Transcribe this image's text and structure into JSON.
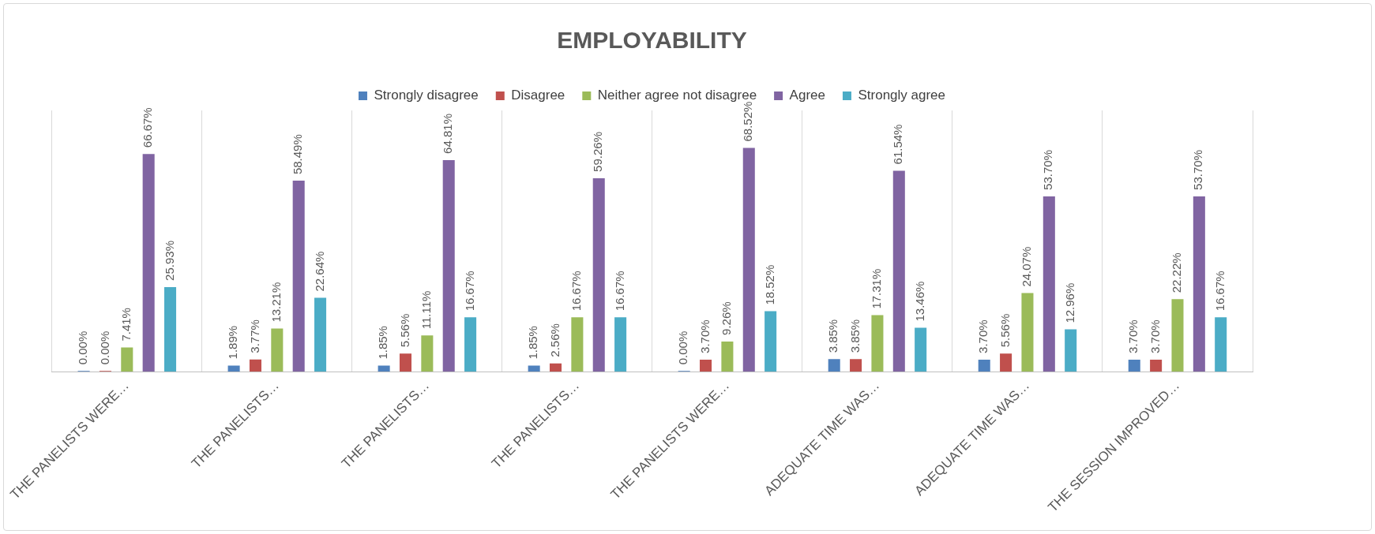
{
  "chart_data": {
    "type": "bar",
    "title": "EMPLOYABILITY",
    "categories": [
      "THE PANELISTS WERE…",
      "THE PANELISTS…",
      "THE PANELISTS…",
      "THE PANELISTS…",
      "THE PANELISTS WERE…",
      "ADEQUATE TIME WAS…",
      "ADEQUATE TIME WAS…",
      "THE SESSION IMPROVED…"
    ],
    "series": [
      {
        "name": "Strongly disagree",
        "color": "#4f81bd",
        "values": [
          0,
          1.89,
          1.85,
          1.85,
          0,
          3.85,
          3.7,
          3.7
        ],
        "value_labels": [
          "0.00%",
          "1.89%",
          "1.85%",
          "1.85%",
          "0.00%",
          "3.85%",
          "3.70%",
          "3.70%"
        ]
      },
      {
        "name": "Disagree",
        "color": "#c0504d",
        "values": [
          0,
          3.77,
          5.56,
          2.56,
          3.7,
          3.85,
          5.56,
          3.7
        ],
        "value_labels": [
          "0.00%",
          "3.77%",
          "5.56%",
          "2.56%",
          "3.70%",
          "3.85%",
          "5.56%",
          "3.70%"
        ]
      },
      {
        "name": "Neither agree not disagree",
        "color": "#9bbb59",
        "values": [
          7.41,
          13.21,
          11.11,
          16.67,
          9.26,
          17.31,
          24.07,
          22.22
        ],
        "value_labels": [
          "7.41%",
          "13.21%",
          "11.11%",
          "16.67%",
          "9.26%",
          "17.31%",
          "24.07%",
          "22.22%"
        ]
      },
      {
        "name": "Agree",
        "color": "#8064a2",
        "values": [
          66.67,
          58.49,
          64.81,
          59.26,
          68.52,
          61.54,
          53.7,
          53.7
        ],
        "value_labels": [
          "66.67%",
          "58.49%",
          "64.81%",
          "59.26%",
          "68.52%",
          "61.54%",
          "53.70%",
          "53.70%"
        ]
      },
      {
        "name": "Strongly agree",
        "color": "#4bacc6",
        "values": [
          25.93,
          22.64,
          16.67,
          16.67,
          18.52,
          13.46,
          12.96,
          16.67
        ],
        "value_labels": [
          "25.93%",
          "22.64%",
          "16.67%",
          "16.67%",
          "18.52%",
          "13.46%",
          "12.96%",
          "16.67%"
        ]
      }
    ],
    "legend": "top",
    "grid": "x"
  }
}
